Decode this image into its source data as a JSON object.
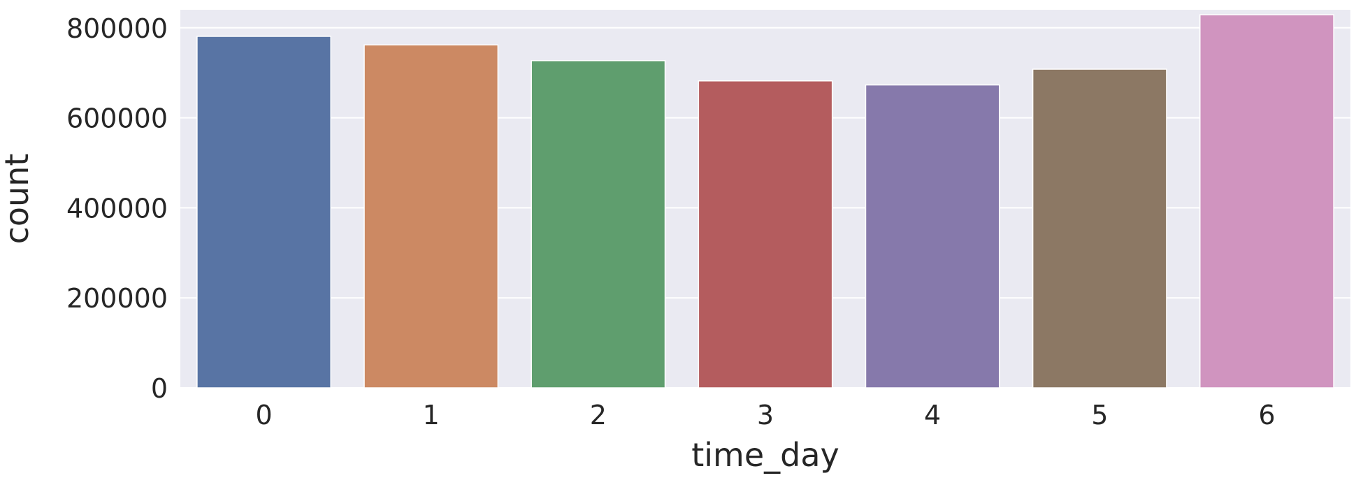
{
  "chart_data": {
    "type": "bar",
    "xlabel": "time_day",
    "ylabel": "count",
    "categories": [
      "0",
      "1",
      "2",
      "3",
      "4",
      "5",
      "6"
    ],
    "values": [
      781000,
      762000,
      727000,
      682000,
      673000,
      708000,
      829000
    ],
    "ylim": [
      0,
      840000
    ],
    "yticks": [
      0,
      200000,
      400000,
      600000,
      800000
    ],
    "ytick_labels": [
      "0",
      "200000",
      "400000",
      "600000",
      "800000"
    ],
    "colors": [
      "#5874a4",
      "#cc8963",
      "#5f9e6e",
      "#b45c5e",
      "#8679ab",
      "#8c7864",
      "#d094bf"
    ],
    "background_color": "#eaeaf2",
    "grid": true
  }
}
